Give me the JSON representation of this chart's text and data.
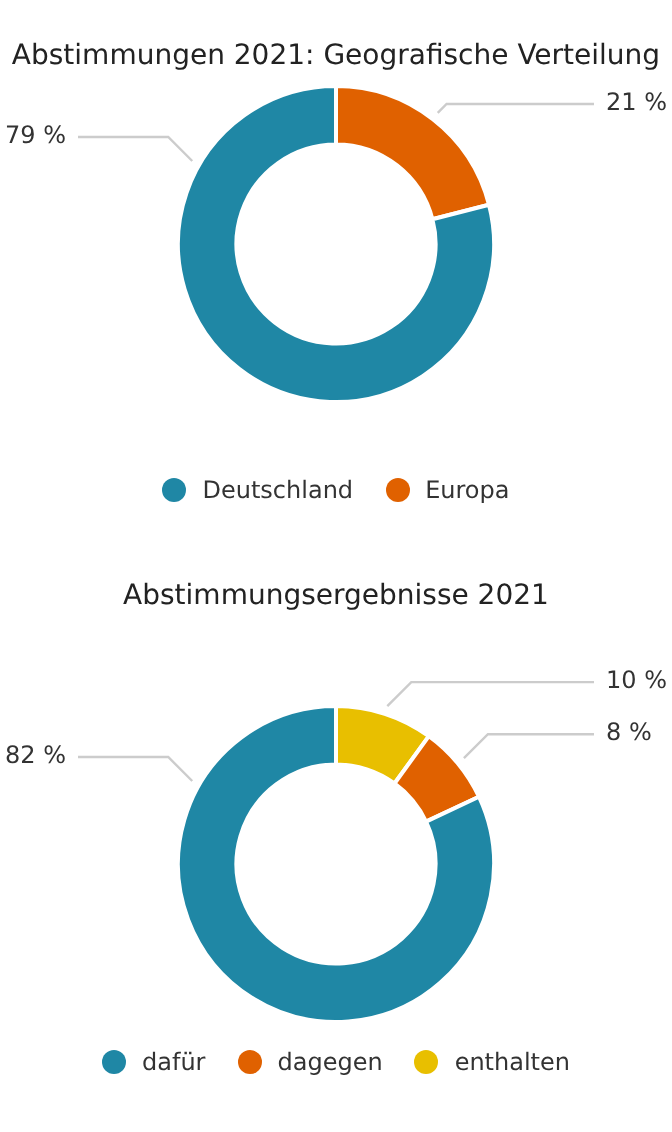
{
  "chart_data": [
    {
      "type": "donut",
      "title": "Abstimmungen 2021: Geografische Verteilung",
      "categories": [
        "Deutschland",
        "Europa"
      ],
      "values": [
        79,
        21
      ],
      "colors": [
        "#1f87a5",
        "#e06100"
      ],
      "value_labels": [
        "79 %",
        "21 %"
      ],
      "legend": "bottom"
    },
    {
      "type": "donut",
      "title": "Abstimmungsergebnisse 2021",
      "categories": [
        "dafür",
        "dagegen",
        "enthalten"
      ],
      "values": [
        82,
        8,
        10
      ],
      "colors": [
        "#1f87a5",
        "#e06100",
        "#e8bf00"
      ],
      "value_labels": [
        "82 %",
        "8 %",
        "10 %"
      ],
      "legend": "bottom"
    }
  ]
}
